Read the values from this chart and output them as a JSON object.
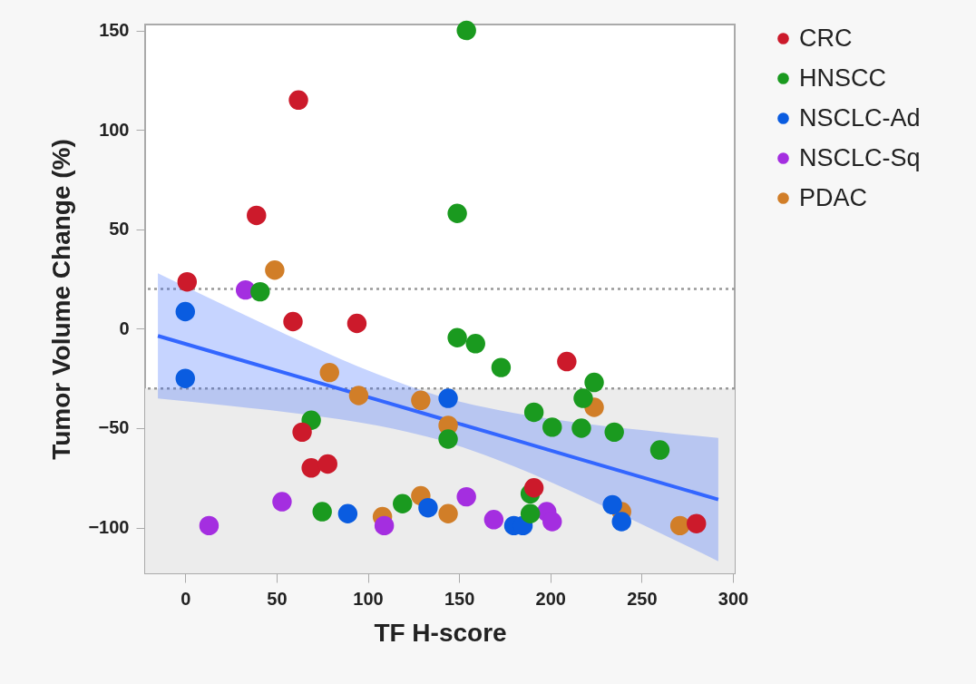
{
  "chart_data": {
    "type": "scatter",
    "xlabel": "TF H-score",
    "ylabel": "Tumor Volume Change (%)",
    "xlim": [
      -22,
      301
    ],
    "ylim": [
      -123,
      153
    ],
    "xticks": [
      0,
      50,
      100,
      150,
      200,
      250,
      300
    ],
    "yticks": [
      -100,
      -50,
      0,
      50,
      100,
      150
    ],
    "legend": "right",
    "marker": "circle",
    "series": [
      {
        "name": "CRC",
        "color": "#cc1a2b",
        "x": [
          62,
          39,
          1,
          59,
          94,
          64,
          69,
          78,
          209,
          191,
          280
        ],
        "values": [
          115,
          57,
          23.6,
          3.6,
          2.7,
          -52,
          -70,
          -68,
          -16.5,
          -80,
          -98
        ]
      },
      {
        "name": "HNSCC",
        "color": "#1a9a1f",
        "x": [
          41,
          154,
          149,
          69,
          75,
          119,
          149,
          159,
          173,
          224,
          218,
          144,
          191,
          201,
          217,
          235,
          260,
          189,
          189
        ],
        "values": [
          18.6,
          150,
          58,
          -46,
          -92,
          -88,
          -4.5,
          -7.5,
          -19.5,
          -27,
          -35,
          -55.5,
          -42,
          -49.5,
          -50,
          -52,
          -61,
          -83,
          -93
        ]
      },
      {
        "name": "NSCLC-Ad",
        "color": "#0a5ce0",
        "x": [
          0,
          0,
          89,
          133,
          144,
          180,
          185,
          234,
          239
        ],
        "values": [
          8.6,
          -25,
          -93,
          -90,
          -35,
          -99,
          -99,
          -88.5,
          -97
        ]
      },
      {
        "name": "NSCLC-Sq",
        "color": "#a42ee0",
        "x": [
          33,
          53,
          13,
          109,
          154,
          169,
          198,
          201
        ],
        "values": [
          19.5,
          -87,
          -99,
          -99,
          -84.5,
          -96,
          -92,
          -97
        ]
      },
      {
        "name": "PDAC",
        "color": "#d17e28",
        "x": [
          49,
          79,
          95,
          129,
          108,
          129,
          224,
          144,
          144,
          239,
          271
        ],
        "values": [
          29.5,
          -22,
          -33.6,
          -36,
          -94.5,
          -84,
          -39.5,
          -48.6,
          -93,
          -92,
          -99
        ]
      },
      {
        "type": "line",
        "marker": "none",
        "color": "#3366ff",
        "x": [
          -15,
          25,
          65,
          105,
          140,
          180,
          220,
          260,
          292
        ],
        "values": [
          -3.6,
          -14.3,
          -25,
          -35.7,
          -45.1,
          -55.8,
          -66.6,
          -77.3,
          -85.9
        ],
        "upper": [
          27.9,
          10.2,
          -7,
          -22.8,
          -34.1,
          -42.4,
          -47.8,
          -51.9,
          -54.9
        ],
        "lower": [
          -35.1,
          -38.8,
          -43,
          -48.6,
          -56.1,
          -69.2,
          -85.4,
          -102.7,
          -116.9
        ]
      }
    ],
    "ref_lines": [
      {
        "axis": "y",
        "value": 20,
        "color": "#999999",
        "line_style": "dotted"
      },
      {
        "axis": "y",
        "value": -30,
        "color": "#999999",
        "line_style": "dotted"
      }
    ],
    "bands": [
      {
        "axis": "y",
        "from": -123,
        "to": -30,
        "color": "#ececec"
      }
    ]
  }
}
